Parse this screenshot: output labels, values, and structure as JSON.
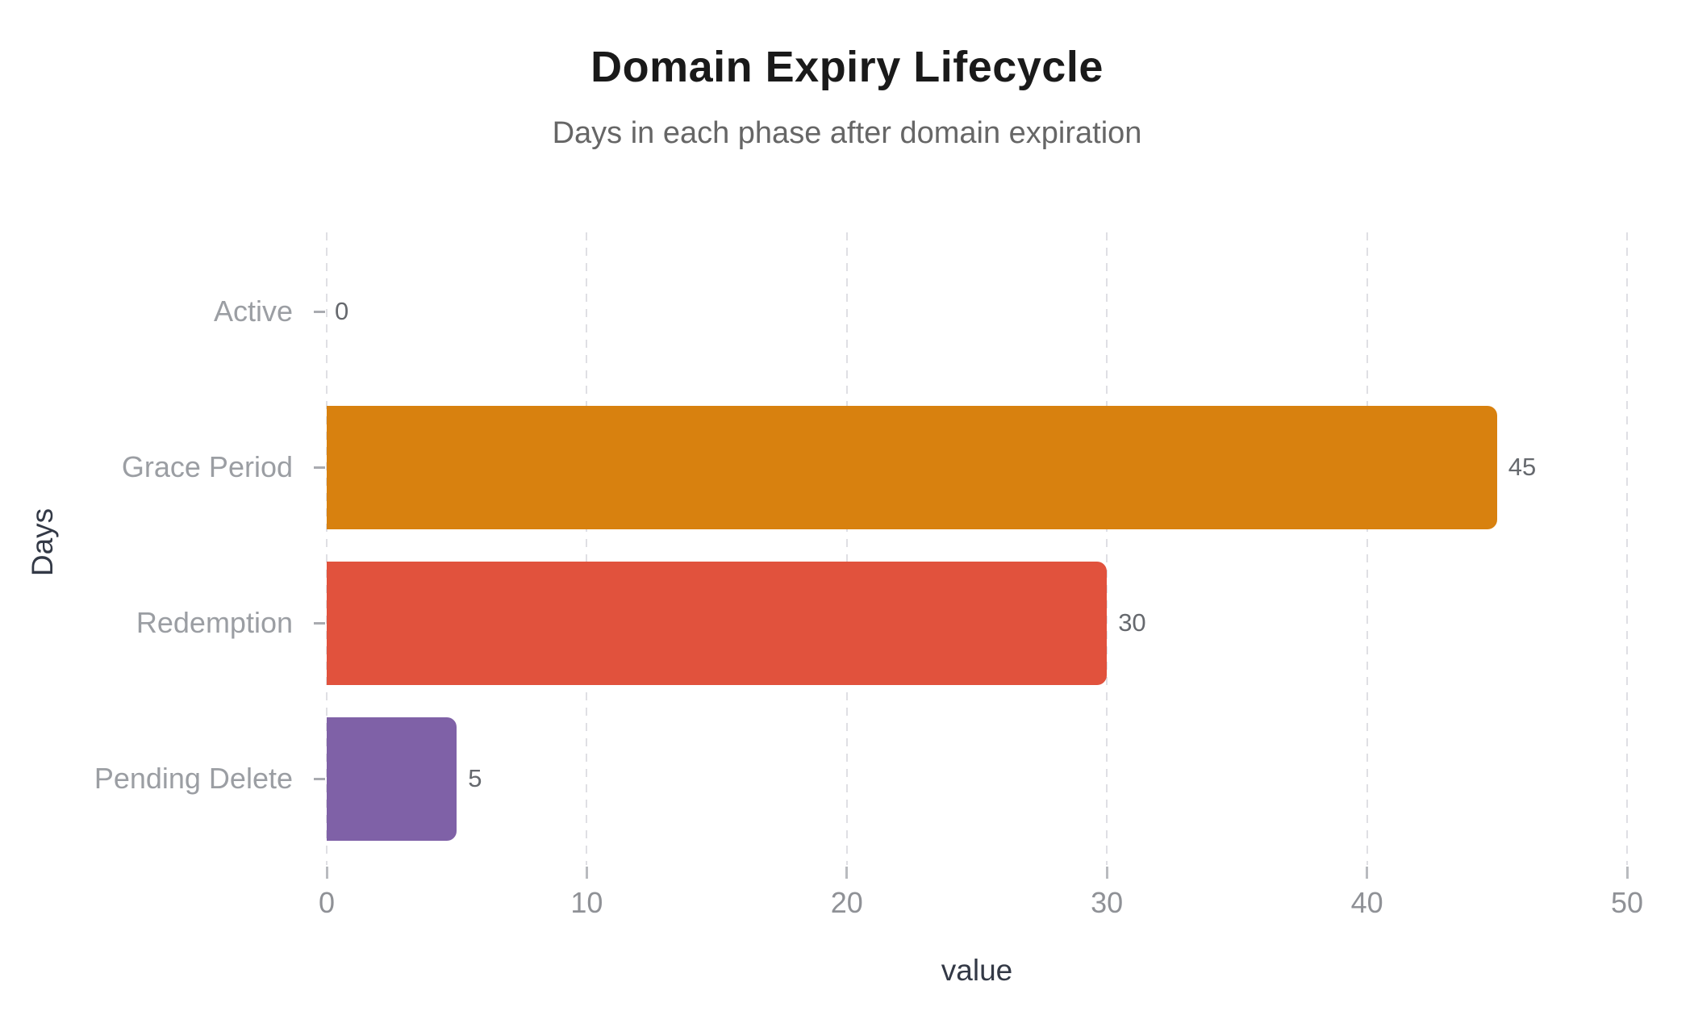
{
  "title": "Domain Expiry Lifecycle",
  "subtitle": "Days in each phase after domain expiration",
  "chart_data": {
    "type": "bar",
    "orientation": "horizontal",
    "title": "Domain Expiry Lifecycle",
    "subtitle": "Days in each phase after domain expiration",
    "categories": [
      "Active",
      "Grace Period",
      "Redemption",
      "Pending Delete"
    ],
    "values": [
      0,
      45,
      30,
      5
    ],
    "value_labels": [
      "0",
      "45",
      "30",
      "5"
    ],
    "bar_colors": [
      null,
      "#d8810f",
      "#e1523d",
      "#7f61a7"
    ],
    "xlabel": "value",
    "ylabel": "Days",
    "xlim": [
      0,
      50
    ],
    "xticks": [
      0,
      10,
      20,
      30,
      40,
      50
    ],
    "grid": {
      "axis": "x",
      "style": "dashed",
      "color": "#dfdfe4"
    },
    "legend_position": "none",
    "background": "#ffffff"
  },
  "colors": {
    "title_text": "#1a1a1a",
    "subtitle_text": "#666666",
    "category_label": "#9b9ea3",
    "value_label": "#66696e",
    "tick_label": "#8f9196",
    "axis_title": "#333946",
    "gridline": "#dfdfe4",
    "tick_mark": "#b9bbbf",
    "bar_orange": "#d8810f",
    "bar_red": "#e1523d",
    "bar_purple": "#7f61a7"
  }
}
